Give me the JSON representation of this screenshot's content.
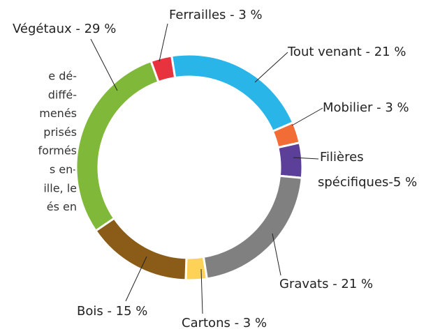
{
  "body_text": [
    "e dé-",
    "diffé-",
    "menés",
    "prisés",
    "formés",
    "s en-",
    "ille, le",
    "és en"
  ],
  "chart_data": {
    "type": "donut",
    "categories": [
      "Tout venant",
      "Mobilier",
      "Filières spécifiques",
      "Gravats",
      "Cartons",
      "Bois",
      "Végétaux",
      "Ferrailles"
    ],
    "values": [
      21,
      3,
      5,
      21,
      3,
      15,
      29,
      3
    ],
    "value_labels": [
      "Tout venant - 21 %",
      "Mobilier - 3 %",
      [
        "Filières",
        "spécifiques-5 %"
      ],
      "Gravats - 21 %",
      "Cartons - 3 %",
      "Bois - 15 %",
      "Végétaux - 29 %",
      "Ferrailles - 3 %"
    ],
    "colors": [
      "#29b5e8",
      "#f26d35",
      "#5b3f98",
      "#808080",
      "#fdd257",
      "#8a5c17",
      "#80b83a",
      "#e8333e"
    ]
  }
}
